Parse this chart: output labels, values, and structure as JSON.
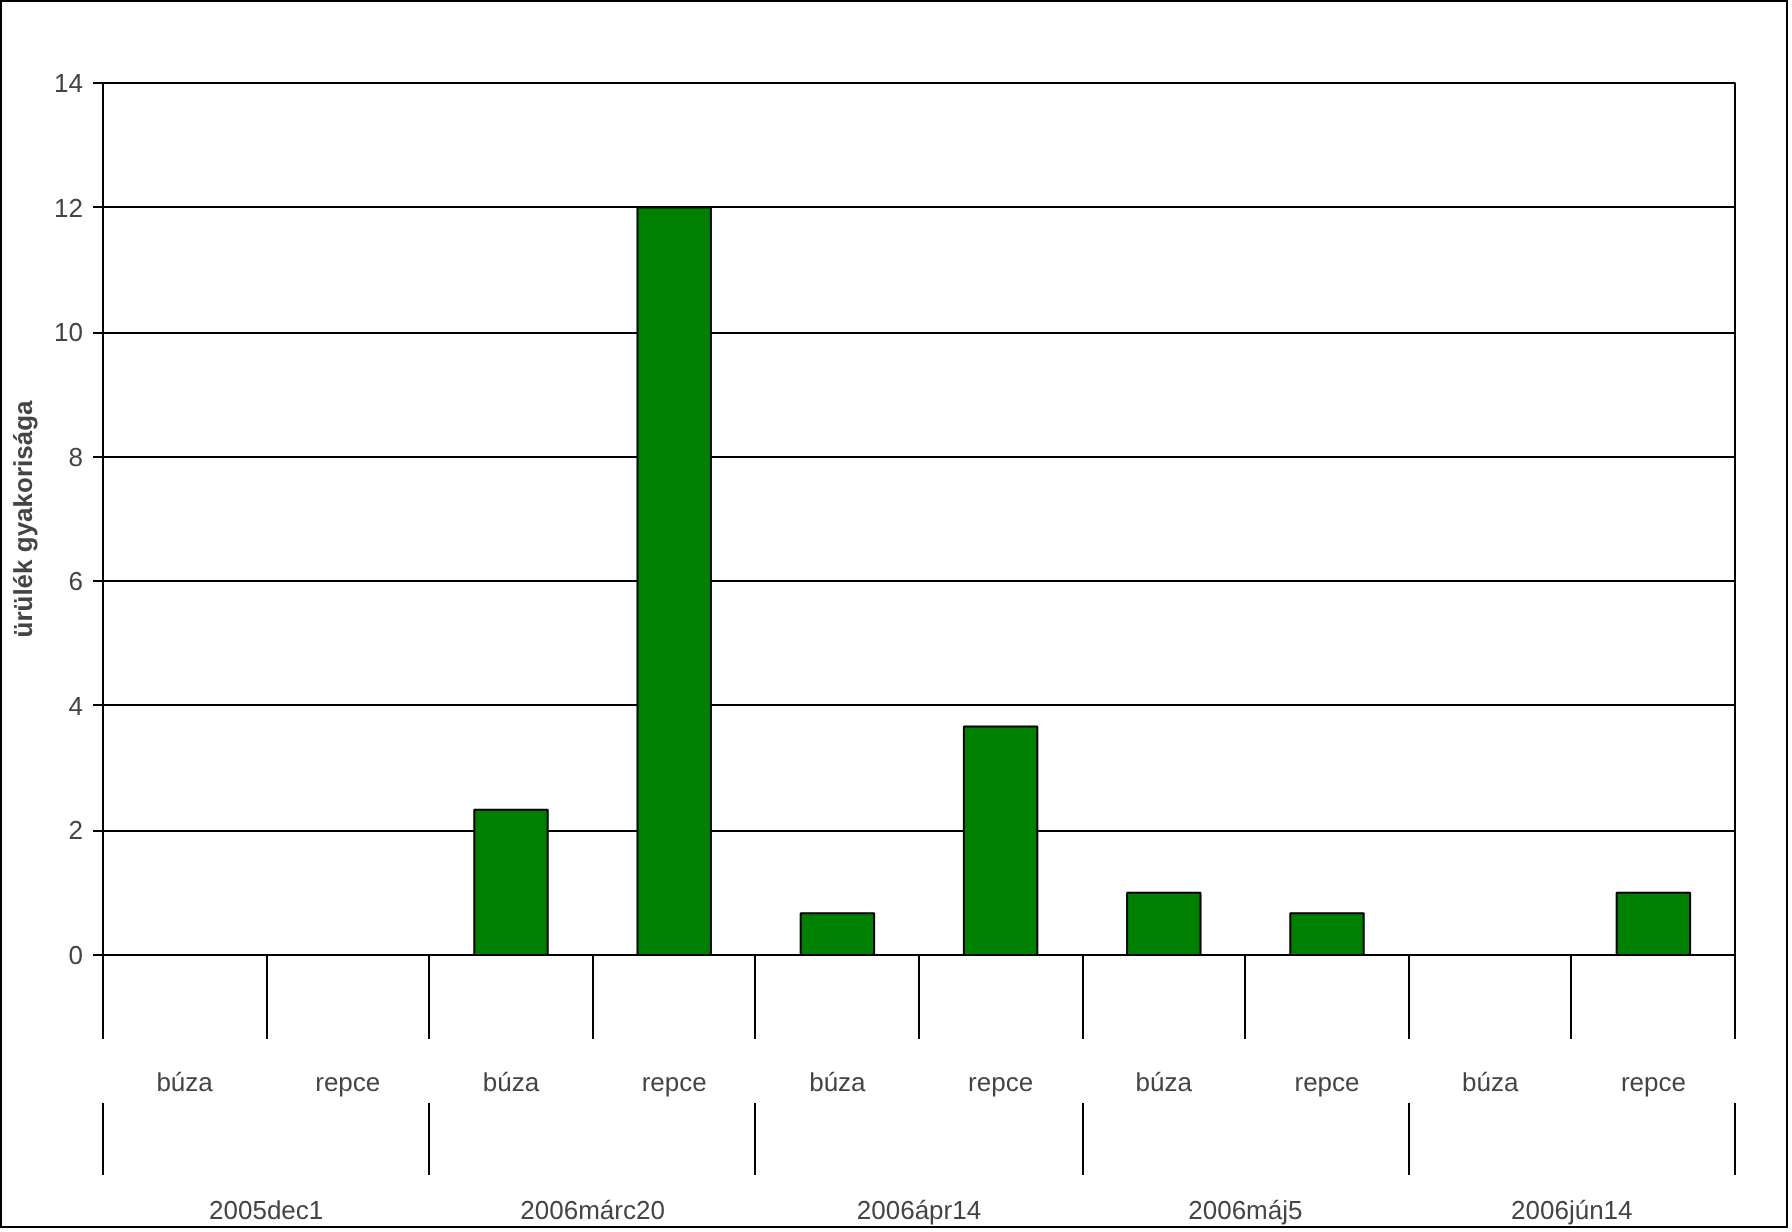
{
  "chart_data": {
    "type": "bar",
    "ylabel": "ürülék gyakorisága",
    "categories": [
      "búza",
      "repce",
      "búza",
      "repce",
      "búza",
      "repce",
      "búza",
      "repce",
      "búza",
      "repce"
    ],
    "values": [
      0,
      0,
      2.33,
      12,
      0.67,
      3.67,
      1,
      0.67,
      0,
      1
    ],
    "color": "#008000",
    "annotations": [
      "2005dec1",
      "2006márc20",
      "2006ápr14",
      "2006máj5",
      "2006jún14"
    ],
    "ylim": [
      0,
      14
    ],
    "yticks": [
      0,
      2,
      4,
      6,
      8,
      10,
      12,
      14
    ],
    "grid": "y"
  }
}
